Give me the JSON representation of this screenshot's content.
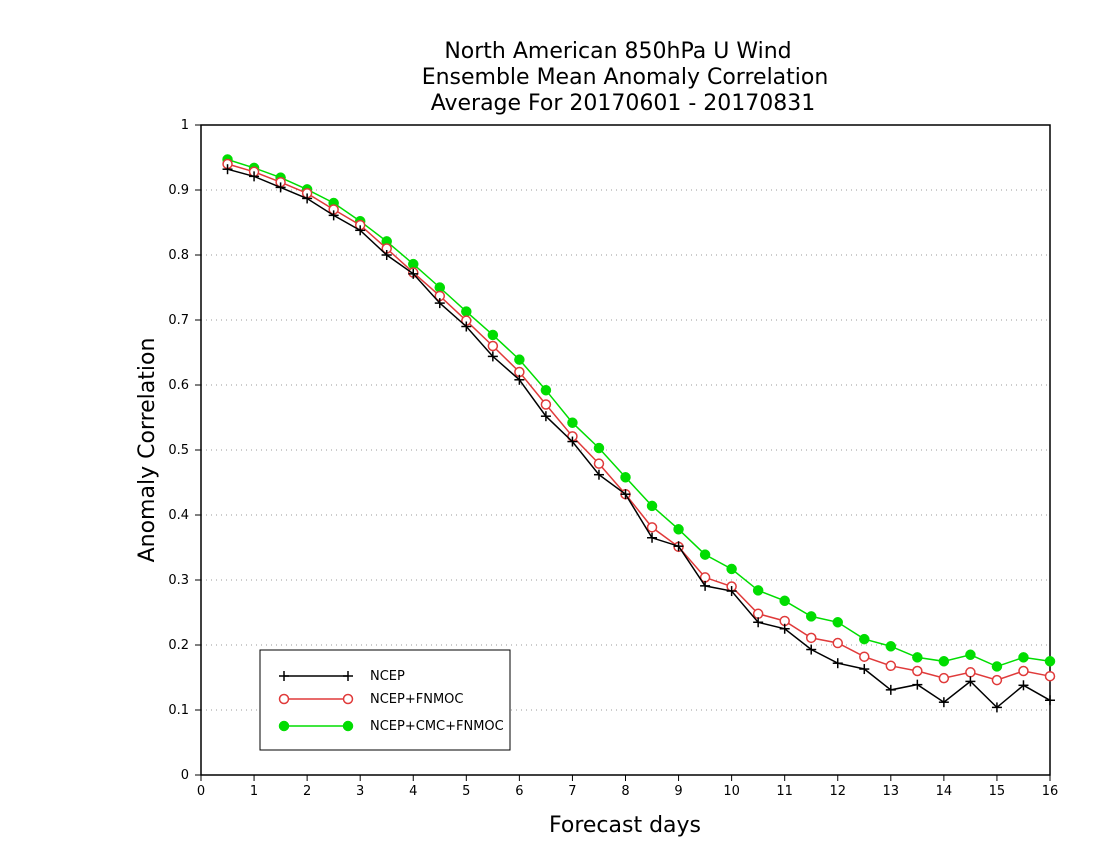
{
  "chart_data": {
    "type": "line",
    "title": [
      "North American 850hPa U Wind",
      "Ensemble Mean Anomaly Correlation",
      "Average For 20170601 - 20170831"
    ],
    "xlabel": "Forecast days",
    "ylabel": "Anomaly Correlation",
    "xlim": [
      0,
      16
    ],
    "ylim": [
      0,
      1
    ],
    "xticks": [
      "0",
      "1",
      "2",
      "3",
      "4",
      "5",
      "6",
      "7",
      "8",
      "9",
      "10",
      "11",
      "12",
      "13",
      "14",
      "15",
      "16"
    ],
    "yticks": [
      "0",
      "0.1",
      "0.2",
      "0.3",
      "0.4",
      "0.5",
      "0.6",
      "0.7",
      "0.8",
      "0.9",
      "1"
    ],
    "grid": "horizontal dotted",
    "legend_position": "bottom-left",
    "x": [
      0.5,
      1,
      1.5,
      2,
      2.5,
      3,
      3.5,
      4,
      4.5,
      5,
      5.5,
      6,
      6.5,
      7,
      7.5,
      8,
      8.5,
      9,
      9.5,
      10,
      10.5,
      11,
      11.5,
      12,
      12.5,
      13,
      13.5,
      14,
      14.5,
      15,
      15.5,
      16
    ],
    "series": [
      {
        "name": "NCEP",
        "color": "#000000",
        "marker": "plus",
        "values": [
          0.932,
          0.921,
          0.904,
          0.887,
          0.861,
          0.838,
          0.8,
          0.771,
          0.726,
          0.69,
          0.644,
          0.608,
          0.552,
          0.513,
          0.462,
          0.432,
          0.365,
          0.352,
          0.291,
          0.283,
          0.235,
          0.225,
          0.193,
          0.172,
          0.163,
          0.131,
          0.139,
          0.112,
          0.144,
          0.104,
          0.138,
          0.115
        ]
      },
      {
        "name": "NCEP+FNMOC",
        "color": "#e03a3a",
        "marker": "open-circle",
        "values": [
          0.94,
          0.928,
          0.912,
          0.895,
          0.87,
          0.846,
          0.81,
          0.773,
          0.737,
          0.699,
          0.66,
          0.62,
          0.57,
          0.521,
          0.479,
          0.432,
          0.381,
          0.351,
          0.304,
          0.29,
          0.248,
          0.237,
          0.211,
          0.203,
          0.182,
          0.168,
          0.16,
          0.149,
          0.158,
          0.146,
          0.16,
          0.152
        ]
      },
      {
        "name": "NCEP+CMC+FNMOC",
        "color": "#00dd00",
        "marker": "filled-circle",
        "values": [
          0.947,
          0.934,
          0.919,
          0.901,
          0.88,
          0.852,
          0.821,
          0.786,
          0.75,
          0.713,
          0.677,
          0.639,
          0.592,
          0.542,
          0.503,
          0.458,
          0.414,
          0.378,
          0.339,
          0.317,
          0.284,
          0.268,
          0.244,
          0.235,
          0.209,
          0.198,
          0.181,
          0.175,
          0.185,
          0.167,
          0.181,
          0.175
        ]
      }
    ]
  }
}
